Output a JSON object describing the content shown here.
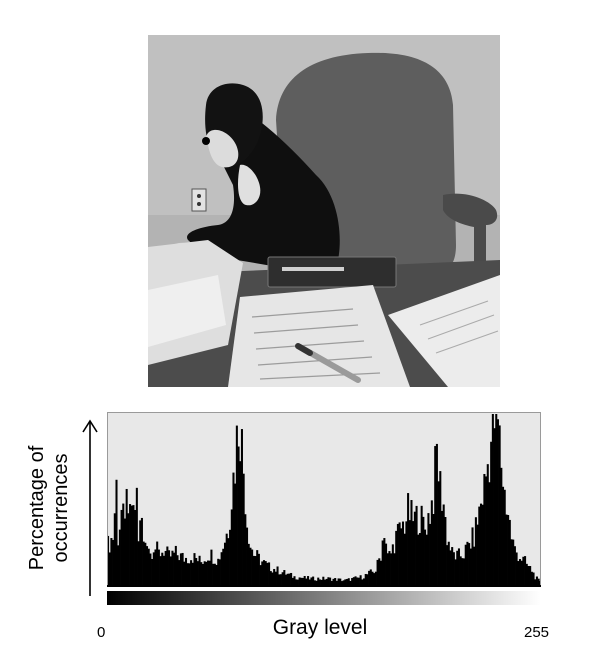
{
  "chart_data": {
    "type": "area",
    "xlabel": "Gray level",
    "ylabel_lines": [
      "Percentage of",
      "occurrences"
    ],
    "xlim": [
      0,
      255
    ],
    "x_tick_labels": [
      "0",
      "255"
    ],
    "fill_color": "#000000",
    "background_color": "#e8e8e8",
    "series": [
      {
        "x": [
          0,
          3,
          5,
          6,
          8,
          10,
          11,
          12,
          14,
          15,
          17,
          18,
          20,
          21,
          23,
          25,
          27,
          30,
          33,
          36,
          40,
          45,
          50,
          55,
          60,
          65,
          68,
          71,
          73,
          75,
          77,
          78,
          80,
          82,
          84,
          86,
          88,
          91,
          95,
          100,
          110,
          120,
          130,
          140,
          150,
          158,
          161,
          163,
          165,
          167,
          170,
          173,
          175,
          177,
          180,
          183,
          185,
          187,
          190,
          192,
          194,
          196,
          198,
          200,
          203,
          206,
          210,
          213,
          216,
          219,
          222,
          225,
          228,
          230,
          232,
          234,
          236,
          238,
          240,
          243,
          246,
          248,
          250,
          252,
          255
        ],
        "y": [
          0.25,
          0.3,
          0.6,
          0.3,
          0.45,
          0.35,
          0.7,
          0.35,
          0.5,
          0.4,
          0.55,
          0.3,
          0.4,
          0.25,
          0.3,
          0.2,
          0.25,
          0.2,
          0.22,
          0.18,
          0.2,
          0.17,
          0.18,
          0.15,
          0.2,
          0.16,
          0.25,
          0.35,
          0.55,
          0.75,
          1.0,
          0.98,
          0.7,
          0.4,
          0.25,
          0.2,
          0.18,
          0.15,
          0.12,
          0.1,
          0.06,
          0.05,
          0.05,
          0.04,
          0.06,
          0.1,
          0.2,
          0.35,
          0.18,
          0.2,
          0.3,
          0.35,
          0.38,
          0.45,
          0.4,
          0.42,
          0.4,
          0.35,
          0.45,
          0.55,
          0.8,
          0.6,
          0.5,
          0.3,
          0.2,
          0.18,
          0.2,
          0.25,
          0.3,
          0.45,
          0.6,
          0.8,
          1.0,
          0.97,
          0.75,
          0.55,
          0.45,
          0.3,
          0.22,
          0.18,
          0.15,
          0.12,
          0.1,
          0.06,
          0.03
        ]
      }
    ]
  }
}
